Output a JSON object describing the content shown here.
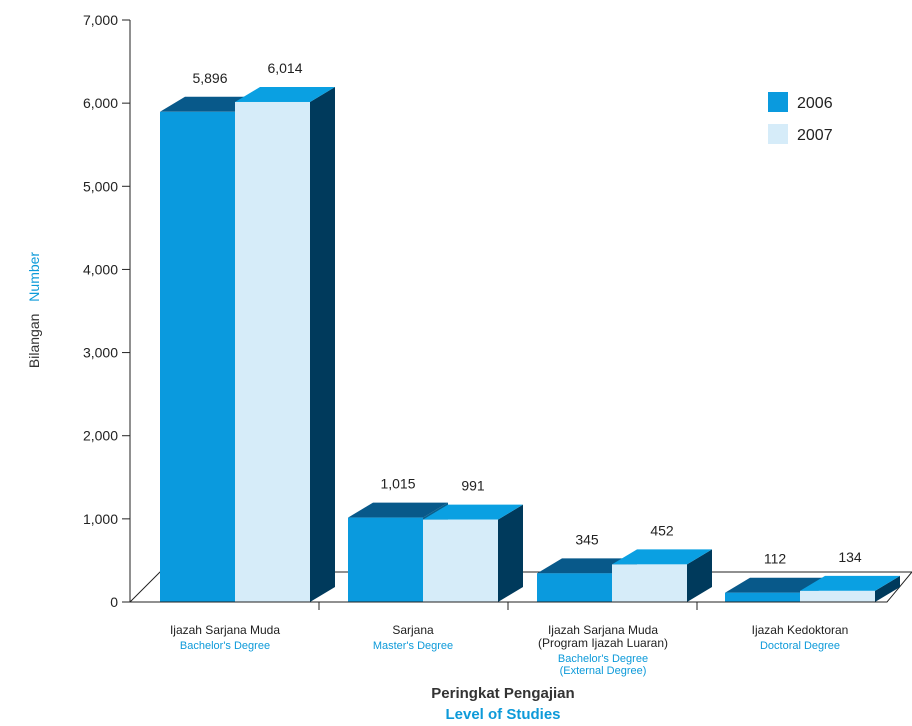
{
  "chart_data": {
    "type": "bar",
    "categories": [
      {
        "lines": [
          "Ijazah Sarjana Muda"
        ],
        "en_lines": [
          "Bachelor's Degree"
        ]
      },
      {
        "lines": [
          "Sarjana"
        ],
        "en_lines": [
          "Master's Degree"
        ]
      },
      {
        "lines": [
          "Ijazah Sarjana Muda",
          "(Program Ijazah Luaran)"
        ],
        "en_lines": [
          "Bachelor's Degree",
          "(External Degree)"
        ]
      },
      {
        "lines": [
          "Ijazah Kedoktoran"
        ],
        "en_lines": [
          "Doctoral Degree"
        ]
      }
    ],
    "series": [
      {
        "name": "2006",
        "values": [
          5896,
          1015,
          345,
          112
        ],
        "labels": [
          "5,896",
          "1,015",
          "345",
          "112"
        ],
        "color": "#0a9ade"
      },
      {
        "name": "2007",
        "values": [
          6014,
          991,
          452,
          134
        ],
        "labels": [
          "6,014",
          "991",
          "452",
          "134"
        ],
        "color": "#d6ecf9"
      }
    ],
    "ylim": [
      0,
      7000
    ],
    "yticks": [
      {
        "value": 0,
        "label": "0"
      },
      {
        "value": 1000,
        "label": "1,000"
      },
      {
        "value": 2000,
        "label": "2,000"
      },
      {
        "value": 3000,
        "label": "3,000"
      },
      {
        "value": 4000,
        "label": "4,000"
      },
      {
        "value": 5000,
        "label": "5,000"
      },
      {
        "value": 6000,
        "label": "6,000"
      },
      {
        "value": 7000,
        "label": "7,000"
      }
    ],
    "ylabel": {
      "ms": "Bilangan",
      "en": "Number"
    },
    "xlabel": {
      "ms": "Peringkat Pengajian",
      "en": "Level of Studies"
    },
    "legend_position": "top-right",
    "grid": false,
    "style": "3d-bar",
    "colors": {
      "side_2006": "#0a5f8c",
      "top_2006": "#08598a",
      "side_2007": "#003a5c",
      "top_2007": "#0aa0e2",
      "accent_en": "#0d9ad9"
    }
  }
}
